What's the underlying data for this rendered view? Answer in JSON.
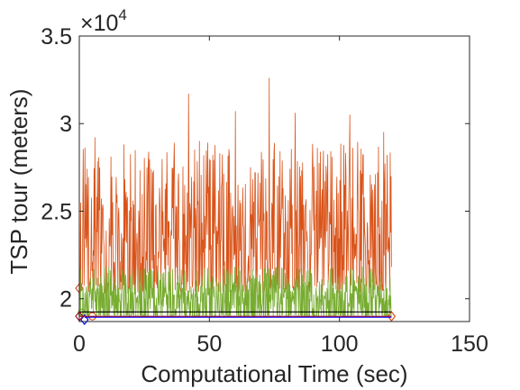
{
  "chart_data": {
    "type": "line",
    "xlabel": "Computational Time (sec)",
    "ylabel": "TSP tour (meters)",
    "y_multiplier": {
      "prefix": "×10",
      "exponent": "4"
    },
    "xlim": [
      0,
      150
    ],
    "ylim": [
      18700,
      35000
    ],
    "x_ticks": [
      0,
      50,
      100,
      150
    ],
    "x_tick_labels": [
      "0",
      "50",
      "100",
      "150"
    ],
    "y_ticks": [
      20000,
      25000,
      30000,
      35000
    ],
    "y_tick_labels": [
      "2",
      "2.5",
      "3",
      "3.5"
    ],
    "grid": false,
    "legend": "none",
    "colors": {
      "orange": "#D95319",
      "green": "#77AC30",
      "blue": "#0000FF",
      "black": "#000000",
      "darkred": "#A2142F",
      "axis": "#262626"
    },
    "series": [
      {
        "color": "#D95319",
        "style": "fluctuating",
        "x_range": [
          0,
          120
        ],
        "baseline": 21000,
        "typical_peak": 26000,
        "max_peaks": [
          {
            "x": 42,
            "y": 31700
          },
          {
            "x": 60,
            "y": 30700
          },
          {
            "x": 73,
            "y": 32600
          },
          {
            "x": 83,
            "y": 30600
          },
          {
            "x": 104,
            "y": 30500
          },
          {
            "x": 117,
            "y": 29500
          },
          {
            "x": 6,
            "y": 29200
          }
        ],
        "markers": [
          {
            "x": 0,
            "y": 20600,
            "shape": "diamond"
          },
          {
            "x": 5,
            "y": 19000,
            "shape": "circle"
          },
          {
            "x": 120,
            "y": 19000,
            "shape": "diamond"
          }
        ]
      },
      {
        "color": "#77AC30",
        "style": "fluctuating",
        "x_range": [
          0,
          120
        ],
        "baseline": 19100,
        "typical_peak": 20800,
        "max_peaks": [
          {
            "x": 25,
            "y": 21700
          },
          {
            "x": 88,
            "y": 21600
          },
          {
            "x": 113,
            "y": 21700
          }
        ],
        "markers": [
          {
            "x": 1,
            "y": 19200,
            "shape": "circle"
          }
        ]
      },
      {
        "color": "#000000",
        "style": "flat",
        "points": [
          [
            0,
            19250
          ],
          [
            120,
            19250
          ]
        ]
      },
      {
        "color": "#0000FF",
        "style": "flat",
        "points": [
          [
            2,
            18950
          ],
          [
            120,
            18950
          ]
        ],
        "markers": [
          {
            "x": 2,
            "y": 18800,
            "shape": "diamond"
          }
        ]
      },
      {
        "color": "#A2142F",
        "style": "flat",
        "points": [
          [
            0,
            19000
          ],
          [
            120,
            19000
          ]
        ],
        "markers": [
          {
            "x": 0,
            "y": 19000,
            "shape": "diamond"
          }
        ]
      }
    ]
  }
}
